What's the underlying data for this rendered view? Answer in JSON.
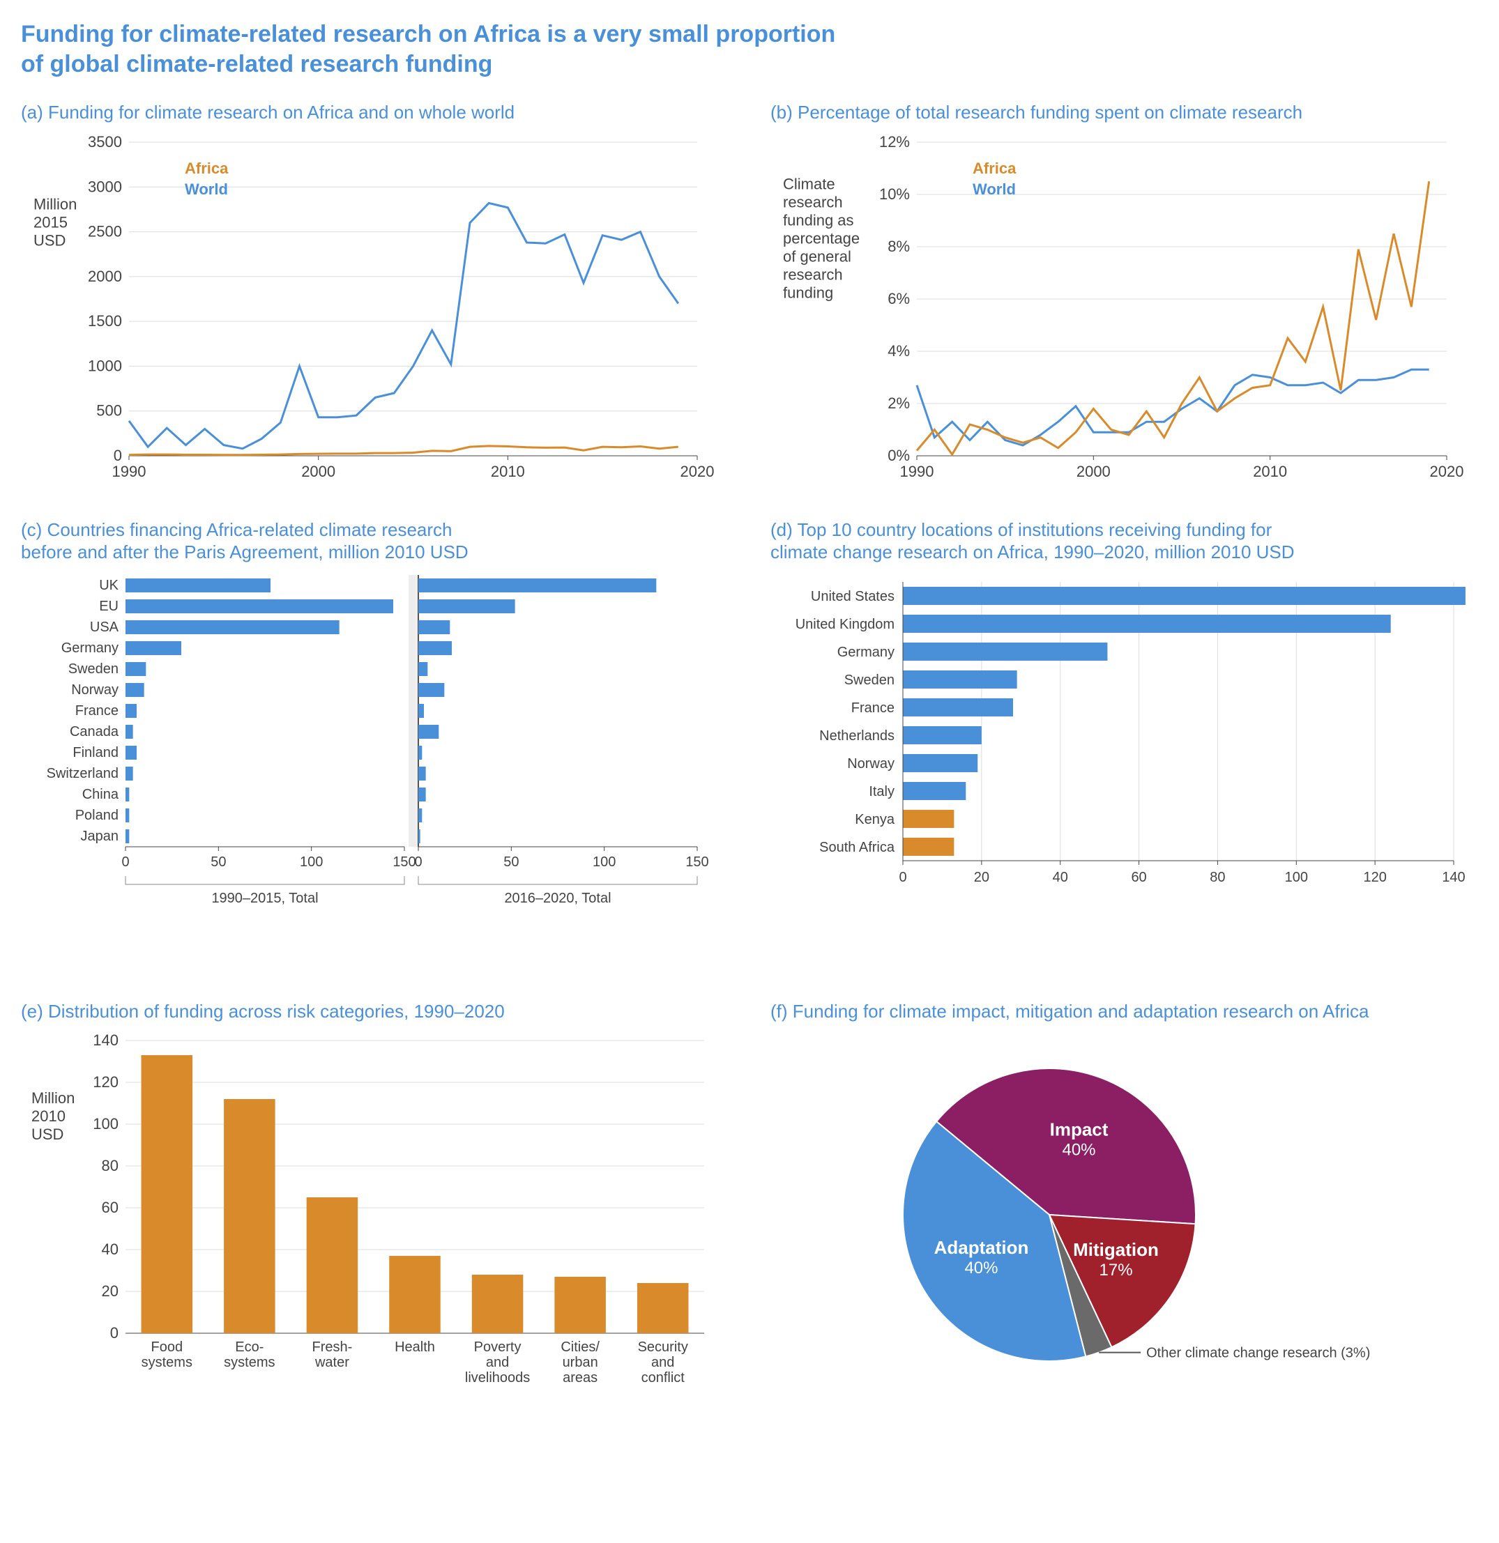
{
  "colors": {
    "blue": "#4a90d9",
    "orange": "#d98b2b",
    "dark_red": "#a0202c",
    "purple": "#8c1e63",
    "grey": "#6a6a6a",
    "grid": "#dcdcdc",
    "axis_text": "#444444"
  },
  "main_title": "Funding for climate-related research on Africa is a very small proportion\nof global climate-related research funding",
  "panel_a": {
    "title": "(a) Funding for climate research on Africa and on whole world",
    "type": "line",
    "ylabel": "Million\n2015\nUSD",
    "xlim": [
      1990,
      2020
    ],
    "ylim": [
      0,
      3500
    ],
    "ytick_step": 500,
    "xtick_step": 10,
    "legend": [
      {
        "label": "Africa",
        "color": "#d98b2b"
      },
      {
        "label": "World",
        "color": "#4a90d9"
      }
    ],
    "years": [
      1990,
      1991,
      1992,
      1993,
      1994,
      1995,
      1996,
      1997,
      1998,
      1999,
      2000,
      2001,
      2002,
      2003,
      2004,
      2005,
      2006,
      2007,
      2008,
      2009,
      2010,
      2011,
      2012,
      2013,
      2014,
      2015,
      2016,
      2017,
      2018,
      2019
    ],
    "world": [
      390,
      100,
      310,
      120,
      300,
      120,
      80,
      190,
      370,
      1000,
      430,
      430,
      450,
      650,
      700,
      1000,
      1400,
      1020,
      2600,
      2820,
      2770,
      2380,
      2370,
      2470,
      1930,
      2460,
      2410,
      2500,
      2000,
      1700
    ],
    "africa": [
      10,
      15,
      15,
      12,
      12,
      10,
      10,
      12,
      15,
      20,
      22,
      24,
      24,
      30,
      30,
      35,
      55,
      52,
      100,
      110,
      105,
      95,
      90,
      92,
      60,
      100,
      95,
      105,
      80,
      100
    ]
  },
  "panel_b": {
    "title": "(b) Percentage of total research funding spent on climate research",
    "type": "line",
    "ylabel": "Climate\nresearch\nfunding as\npercentage\nof general\nresearch\nfunding",
    "xlim": [
      1990,
      2020
    ],
    "ylim": [
      0,
      12
    ],
    "ytick_step": 2,
    "ytick_suffix": "%",
    "xtick_step": 10,
    "legend": [
      {
        "label": "Africa",
        "color": "#d98b2b"
      },
      {
        "label": "World",
        "color": "#4a90d9"
      }
    ],
    "years": [
      1990,
      1991,
      1992,
      1993,
      1994,
      1995,
      1996,
      1997,
      1998,
      1999,
      2000,
      2001,
      2002,
      2003,
      2004,
      2005,
      2006,
      2007,
      2008,
      2009,
      2010,
      2011,
      2012,
      2013,
      2014,
      2015,
      2016,
      2017,
      2018,
      2019
    ],
    "world": [
      2.7,
      0.7,
      1.3,
      0.6,
      1.3,
      0.6,
      0.4,
      0.8,
      1.3,
      1.9,
      0.9,
      0.9,
      0.9,
      1.3,
      1.3,
      1.8,
      2.2,
      1.7,
      2.7,
      3.1,
      3.0,
      2.7,
      2.7,
      2.8,
      2.4,
      2.9,
      2.9,
      3.0,
      3.3,
      3.3
    ],
    "africa": [
      0.2,
      1.0,
      0.05,
      1.2,
      1.0,
      0.7,
      0.5,
      0.7,
      0.3,
      0.9,
      1.8,
      1.0,
      0.8,
      1.7,
      0.7,
      2.0,
      3.0,
      1.7,
      2.2,
      2.6,
      2.7,
      4.5,
      3.6,
      5.7,
      2.5,
      7.9,
      5.2,
      8.5,
      5.7,
      10.5
    ]
  },
  "panel_c": {
    "title": "(c) Countries financing Africa-related climate research\nbefore and after the Paris Agreement, million 2010 USD",
    "type": "paired_hbar",
    "countries": [
      "UK",
      "EU",
      "USA",
      "Germany",
      "Sweden",
      "Norway",
      "France",
      "Canada",
      "Finland",
      "Switzerland",
      "China",
      "Poland",
      "Japan"
    ],
    "before": [
      78,
      144,
      115,
      30,
      11,
      10,
      6,
      4,
      6,
      4,
      2,
      2,
      2
    ],
    "after": [
      128,
      52,
      17,
      18,
      5,
      14,
      3,
      11,
      2,
      4,
      4,
      2,
      1
    ],
    "bar_color": "#4a90d9",
    "xlim": [
      0,
      150
    ],
    "xtick_step": 50,
    "period_labels": [
      "1990–2015, Total",
      "2016–2020, Total"
    ]
  },
  "panel_d": {
    "title": "(d) Top 10 country locations of institutions receiving funding for\nclimate change research on Africa, 1990–2020, million 2010 USD",
    "type": "hbar",
    "countries": [
      "United States",
      "United Kingdom",
      "Germany",
      "Sweden",
      "France",
      "Netherlands",
      "Norway",
      "Italy",
      "Kenya",
      "South Africa"
    ],
    "values": [
      143,
      124,
      52,
      29,
      28,
      20,
      19,
      16,
      13,
      13
    ],
    "colors": [
      "#4a90d9",
      "#4a90d9",
      "#4a90d9",
      "#4a90d9",
      "#4a90d9",
      "#4a90d9",
      "#4a90d9",
      "#4a90d9",
      "#d98b2b",
      "#d98b2b"
    ],
    "xlim": [
      0,
      140
    ],
    "xtick_step": 20
  },
  "panel_e": {
    "title": "(e) Distribution of funding across risk categories, 1990–2020",
    "type": "vbar",
    "ylabel": "Million\n2010\nUSD",
    "categories": [
      "Food\nsystems",
      "Eco-\nsystems",
      "Fresh-\nwater",
      "Health",
      "Poverty\nand\nlivelihoods",
      "Cities/\nurban\nareas",
      "Security\nand\nconflict"
    ],
    "values": [
      133,
      112,
      65,
      37,
      28,
      27,
      24
    ],
    "bar_color": "#d98b2b",
    "ylim": [
      0,
      140
    ],
    "ytick_step": 20
  },
  "panel_f": {
    "title": "(f) Funding for climate impact, mitigation and adaptation research on Africa",
    "type": "pie",
    "slices": [
      {
        "label": "Impact",
        "value": 40,
        "display": "40%",
        "color": "#8c1e63"
      },
      {
        "label": "Mitigation",
        "value": 17,
        "display": "17%",
        "color": "#a0202c"
      },
      {
        "label": "Other climate change research",
        "value": 3,
        "display": "(3%)",
        "color": "#6a6a6a",
        "external": true
      },
      {
        "label": "Adaptation",
        "value": 40,
        "display": "40%",
        "color": "#4a90d9"
      }
    ]
  }
}
